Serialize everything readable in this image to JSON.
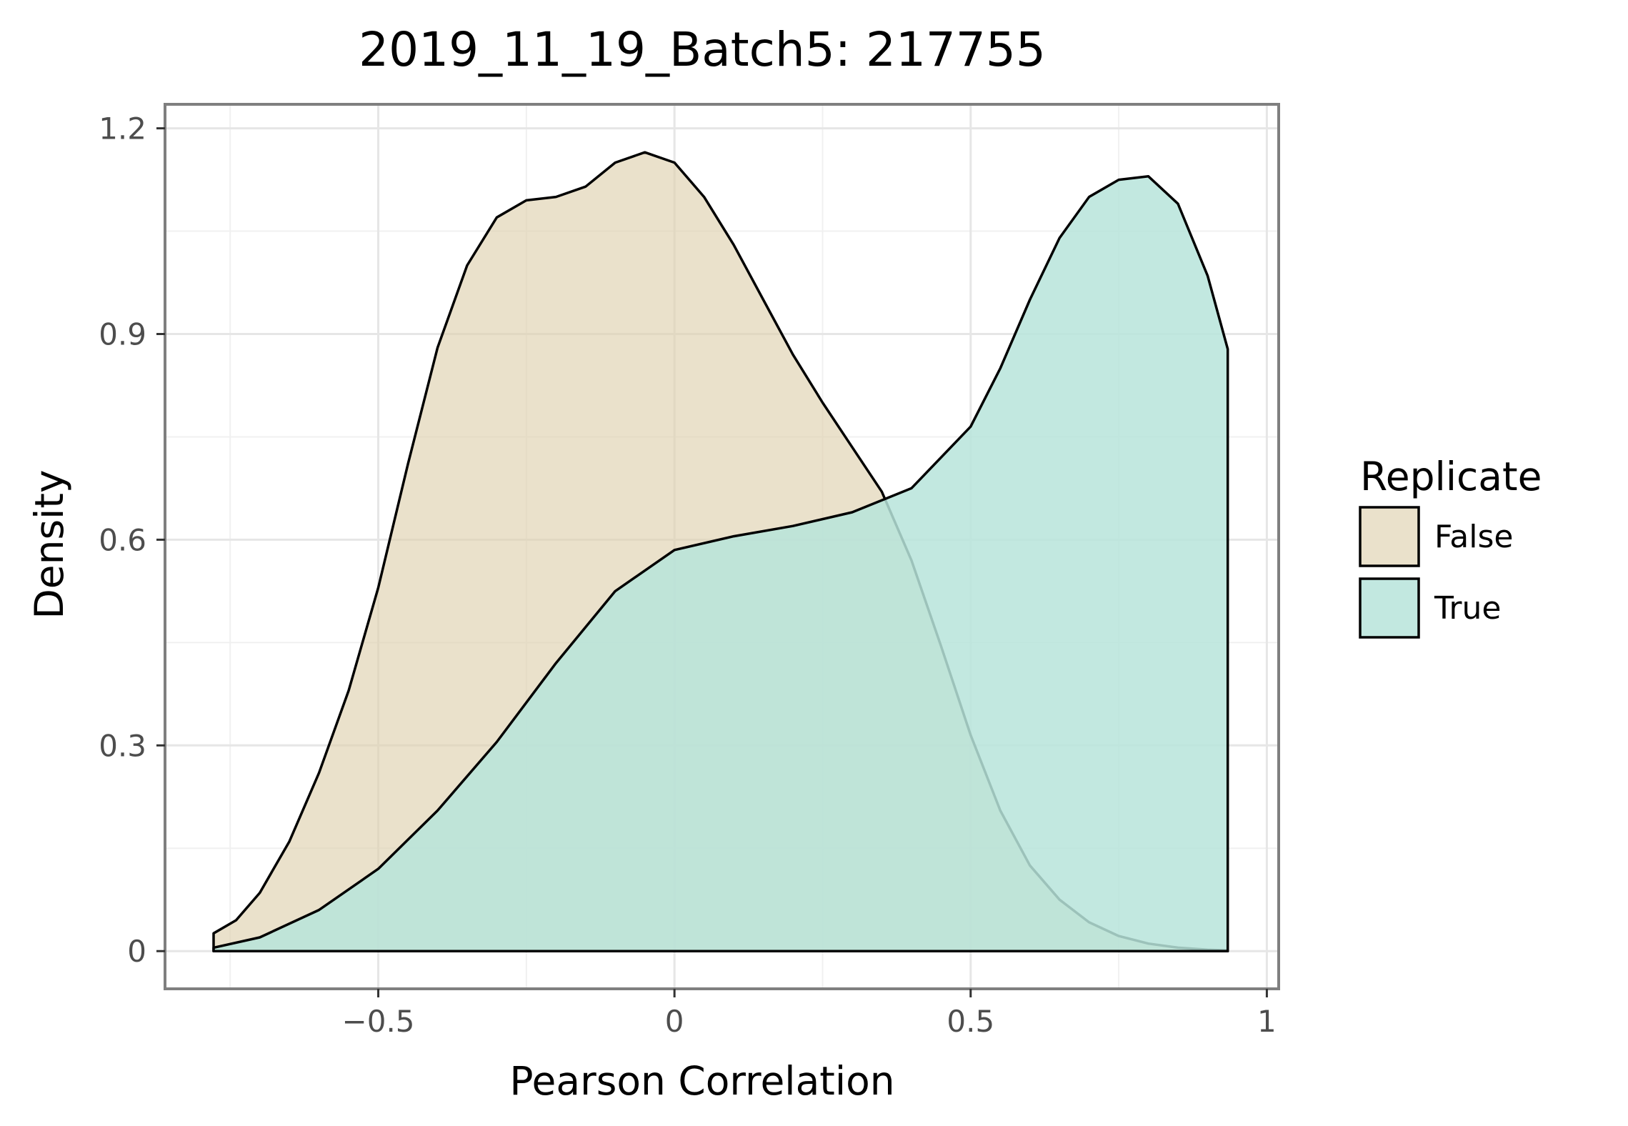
{
  "chart_data": {
    "type": "area",
    "title": "2019_11_19_Batch5: 217755",
    "xlabel": "Pearson Correlation",
    "ylabel": "Density",
    "xlim": [
      -0.86,
      1.02
    ],
    "ylim": [
      -0.055,
      1.235
    ],
    "x_ticks": [
      -0.5,
      0,
      0.5,
      1
    ],
    "x_tick_labels": [
      "−0.5",
      "0",
      "0.5",
      "1"
    ],
    "y_ticks": [
      0,
      0.3,
      0.6,
      0.9,
      1.2
    ],
    "y_tick_labels": [
      "0",
      "0.3",
      "0.6",
      "0.9",
      "1.2"
    ],
    "grid": true,
    "legend": {
      "title": "Replicate",
      "position": "right"
    },
    "series": [
      {
        "name": "False",
        "fill": "#dfd1af",
        "fill_opacity": 0.65,
        "points": [
          [
            -0.778,
            0.026
          ],
          [
            -0.74,
            0.045
          ],
          [
            -0.7,
            0.085
          ],
          [
            -0.65,
            0.16
          ],
          [
            -0.6,
            0.26
          ],
          [
            -0.55,
            0.38
          ],
          [
            -0.5,
            0.53
          ],
          [
            -0.45,
            0.71
          ],
          [
            -0.4,
            0.88
          ],
          [
            -0.35,
            1.0
          ],
          [
            -0.3,
            1.07
          ],
          [
            -0.25,
            1.095
          ],
          [
            -0.2,
            1.1
          ],
          [
            -0.15,
            1.115
          ],
          [
            -0.1,
            1.15
          ],
          [
            -0.05,
            1.165
          ],
          [
            0.0,
            1.15
          ],
          [
            0.05,
            1.1
          ],
          [
            0.1,
            1.03
          ],
          [
            0.15,
            0.95
          ],
          [
            0.2,
            0.87
          ],
          [
            0.25,
            0.8
          ],
          [
            0.3,
            0.735
          ],
          [
            0.35,
            0.67
          ],
          [
            0.4,
            0.57
          ],
          [
            0.45,
            0.445
          ],
          [
            0.5,
            0.315
          ],
          [
            0.55,
            0.205
          ],
          [
            0.6,
            0.125
          ],
          [
            0.65,
            0.075
          ],
          [
            0.7,
            0.042
          ],
          [
            0.75,
            0.022
          ],
          [
            0.8,
            0.011
          ],
          [
            0.85,
            0.005
          ],
          [
            0.9,
            0.002
          ],
          [
            0.934,
            0.001
          ]
        ]
      },
      {
        "name": "True",
        "fill": "#b7e4da",
        "fill_opacity": 0.85,
        "points": [
          [
            -0.778,
            0.005
          ],
          [
            -0.7,
            0.02
          ],
          [
            -0.6,
            0.06
          ],
          [
            -0.5,
            0.12
          ],
          [
            -0.4,
            0.205
          ],
          [
            -0.3,
            0.305
          ],
          [
            -0.2,
            0.42
          ],
          [
            -0.1,
            0.525
          ],
          [
            0.0,
            0.585
          ],
          [
            0.1,
            0.605
          ],
          [
            0.2,
            0.62
          ],
          [
            0.3,
            0.64
          ],
          [
            0.4,
            0.675
          ],
          [
            0.5,
            0.765
          ],
          [
            0.55,
            0.85
          ],
          [
            0.6,
            0.95
          ],
          [
            0.65,
            1.04
          ],
          [
            0.7,
            1.1
          ],
          [
            0.75,
            1.125
          ],
          [
            0.8,
            1.13
          ],
          [
            0.85,
            1.09
          ],
          [
            0.9,
            0.985
          ],
          [
            0.934,
            0.878
          ]
        ]
      }
    ]
  }
}
